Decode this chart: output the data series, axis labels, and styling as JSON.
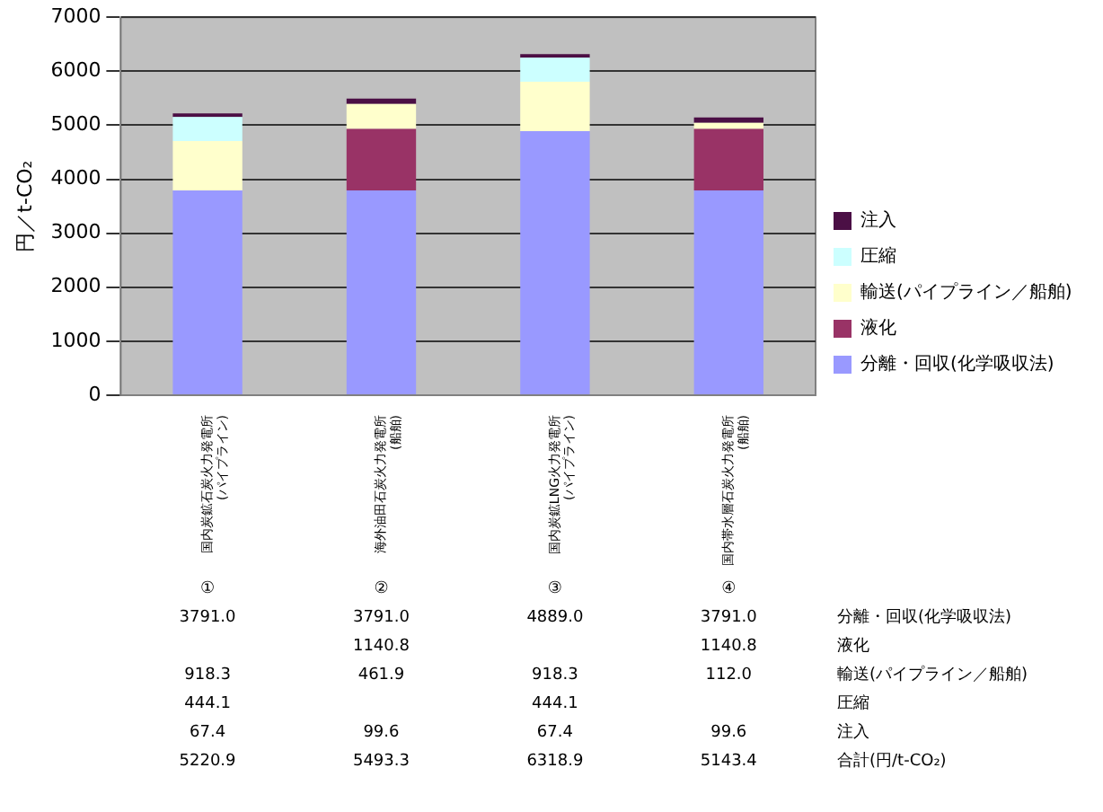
{
  "chart_data": {
    "type": "bar",
    "stacked": true,
    "ylabel": "円／t-CO₂",
    "categories": [
      "国内炭鉱石炭火力発電所(パイプライン)",
      "海外油田石炭火力発電所(船舶)",
      "国内炭鉱LNG火力発電所(パイプライン)",
      "国内帯水層石炭火力発電所(船舶)"
    ],
    "series": [
      {
        "name": "分離・回収(化学吸収法)",
        "color": "#9999ff",
        "values": [
          3791.0,
          3791.0,
          4889.0,
          3791.0
        ],
        "value_labels": [
          "3791.0",
          "3791.0",
          "4889.0",
          "3791.0"
        ]
      },
      {
        "name": "液化",
        "color": "#993366",
        "values": [
          null,
          1140.8,
          null,
          1140.8
        ],
        "value_labels": [
          null,
          "1140.8",
          null,
          "1140.8"
        ]
      },
      {
        "name": "輸送(パイプライン／船舶)",
        "color": "#ffffcc",
        "values": [
          918.3,
          461.9,
          918.3,
          112.0
        ],
        "value_labels": [
          "918.3",
          "461.9",
          "918.3",
          "112.0"
        ]
      },
      {
        "name": "圧縮",
        "color": "#ccffff",
        "values": [
          444.1,
          null,
          444.1,
          null
        ],
        "value_labels": [
          "444.1",
          null,
          "444.1",
          null
        ]
      },
      {
        "name": "注入",
        "color": "#4b0f45",
        "values": [
          67.4,
          99.6,
          67.4,
          99.6
        ],
        "value_labels": [
          "67.4",
          "99.6",
          "67.4",
          "99.6"
        ]
      }
    ],
    "annotations": [
      "①",
      "②",
      "③",
      "④",
      "合計(円/t-CO₂)",
      "5220.9",
      "5493.3",
      "6318.9",
      "5143.4"
    ],
    "ylim": [
      0,
      7000
    ],
    "yticks": [
      0,
      1000,
      2000,
      3000,
      4000,
      5000,
      6000,
      7000
    ],
    "grid": "y",
    "legend": "right"
  }
}
